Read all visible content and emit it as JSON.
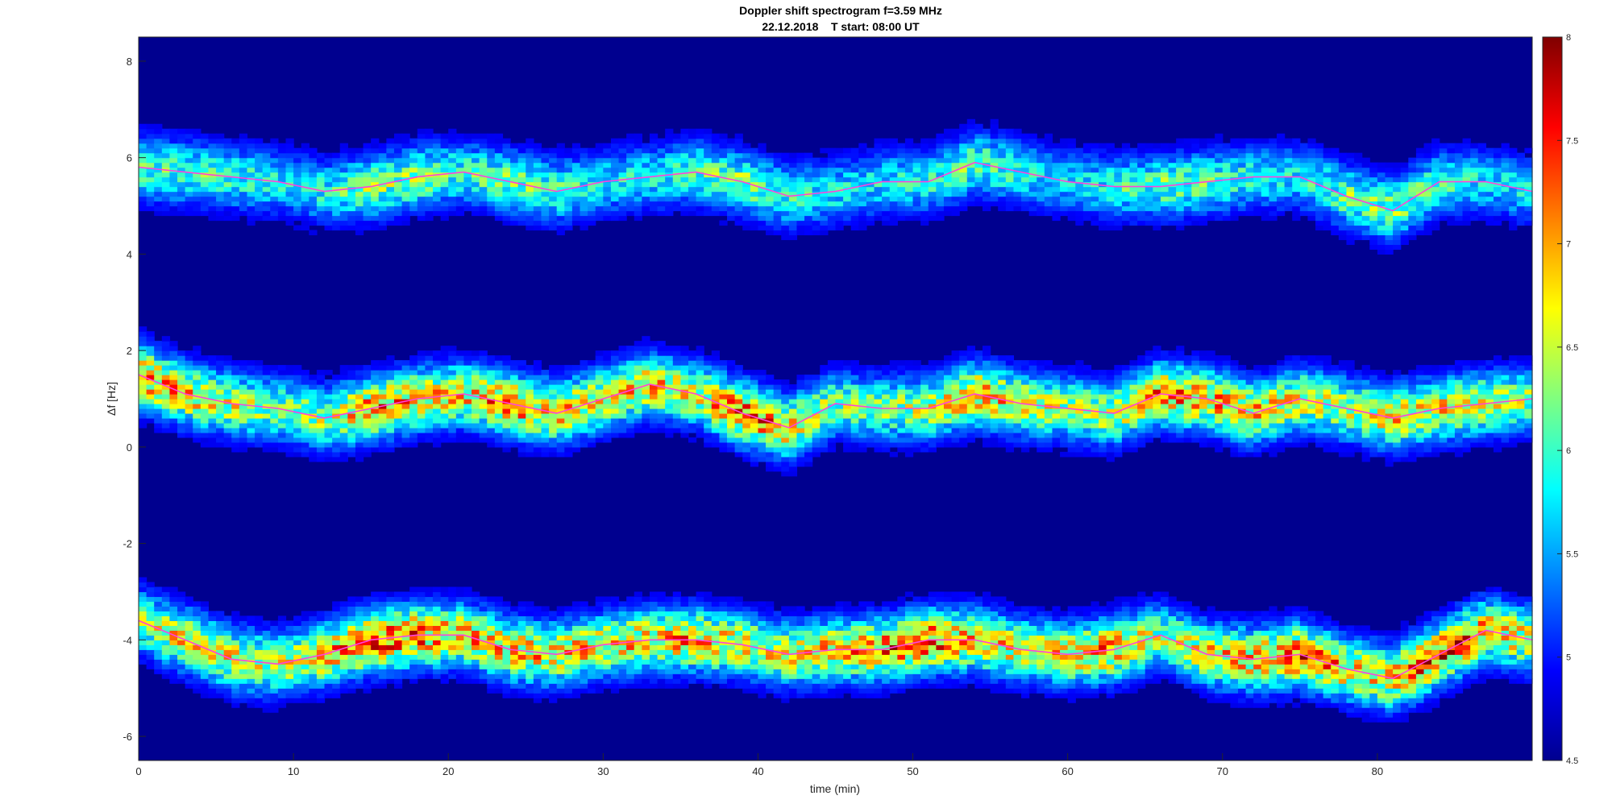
{
  "chart_data": {
    "type": "heatmap",
    "title": "Doppler shift spectrogram f=3.59 MHz",
    "subtitle": "22.12.2018    T start: 08:00 UT",
    "xlabel": "time (min)",
    "ylabel": "Δf [Hz]",
    "xlim": [
      0,
      90
    ],
    "ylim": [
      -6.5,
      8.5
    ],
    "xticks": [
      0,
      10,
      20,
      30,
      40,
      50,
      60,
      70,
      80
    ],
    "yticks": [
      -6,
      -4,
      -2,
      0,
      2,
      4,
      6,
      8
    ],
    "colormap": "jet",
    "clim": [
      4.5,
      8
    ],
    "colorbar_ticks": [
      4.5,
      5,
      5.5,
      6,
      6.5,
      7,
      7.5,
      8
    ],
    "colorbar_tick_labels": [
      "4.5",
      "5",
      "5.5",
      "6",
      "6.5",
      "7",
      "7.5",
      "8"
    ],
    "background_level": 4.7,
    "bands": [
      {
        "time": [
          0,
          3,
          6,
          9,
          12,
          15,
          18,
          21,
          24,
          27,
          30,
          33,
          36,
          39,
          42,
          45,
          48,
          51,
          54,
          57,
          60,
          63,
          66,
          69,
          72,
          75,
          78,
          81,
          84,
          87,
          90
        ],
        "center_hz": [
          5.8,
          5.7,
          5.6,
          5.5,
          5.3,
          5.4,
          5.6,
          5.7,
          5.5,
          5.3,
          5.5,
          5.6,
          5.7,
          5.5,
          5.2,
          5.3,
          5.5,
          5.5,
          5.9,
          5.7,
          5.5,
          5.4,
          5.4,
          5.5,
          5.6,
          5.6,
          5.2,
          4.9,
          5.5,
          5.5,
          5.3
        ],
        "intensity": [
          6.3,
          6.2,
          6.1,
          5.9,
          6.0,
          6.4,
          6.4,
          6.1,
          6.3,
          6.2,
          5.9,
          6.0,
          6.2,
          6.4,
          6.1,
          5.9,
          5.9,
          6.0,
          6.3,
          6.0,
          5.8,
          6.0,
          6.3,
          6.2,
          6.0,
          5.9,
          6.3,
          6.4,
          6.1,
          5.9,
          5.9
        ]
      },
      {
        "time": [
          0,
          3,
          6,
          9,
          12,
          15,
          18,
          21,
          24,
          27,
          30,
          33,
          36,
          39,
          42,
          45,
          48,
          51,
          54,
          57,
          60,
          63,
          66,
          69,
          72,
          75,
          78,
          81,
          84,
          87,
          90
        ],
        "center_hz": [
          1.5,
          1.1,
          0.9,
          0.8,
          0.6,
          0.8,
          1.0,
          1.1,
          0.9,
          0.7,
          1.0,
          1.3,
          1.1,
          0.7,
          0.4,
          0.9,
          0.8,
          0.8,
          1.1,
          0.9,
          0.8,
          0.7,
          1.1,
          1.0,
          0.7,
          1.0,
          0.8,
          0.6,
          0.8,
          0.9,
          1.0
        ],
        "intensity": [
          7.3,
          7.0,
          6.7,
          6.4,
          6.5,
          7.3,
          7.0,
          6.9,
          7.3,
          7.0,
          6.8,
          7.0,
          6.7,
          7.5,
          7.0,
          6.4,
          6.4,
          6.6,
          7.2,
          6.8,
          6.5,
          6.7,
          7.3,
          7.1,
          7.0,
          6.8,
          6.6,
          6.9,
          6.9,
          6.8,
          6.5
        ]
      },
      {
        "time": [
          0,
          3,
          6,
          9,
          12,
          15,
          18,
          21,
          24,
          27,
          30,
          33,
          36,
          39,
          42,
          45,
          48,
          51,
          54,
          57,
          60,
          63,
          66,
          69,
          72,
          75,
          78,
          81,
          84,
          87,
          90
        ],
        "center_hz": [
          -3.6,
          -4.0,
          -4.4,
          -4.5,
          -4.3,
          -4.0,
          -3.9,
          -3.9,
          -4.2,
          -4.3,
          -4.1,
          -4.0,
          -4.0,
          -4.1,
          -4.3,
          -4.2,
          -4.2,
          -4.0,
          -4.0,
          -4.2,
          -4.3,
          -4.2,
          -3.9,
          -4.3,
          -4.4,
          -4.3,
          -4.6,
          -4.8,
          -4.3,
          -3.8,
          -4.0
        ],
        "intensity": [
          6.4,
          6.9,
          6.8,
          6.6,
          7.0,
          7.5,
          7.4,
          7.0,
          7.1,
          7.0,
          6.9,
          7.0,
          7.2,
          6.8,
          6.9,
          7.0,
          7.3,
          7.5,
          7.0,
          6.8,
          6.9,
          7.2,
          6.5,
          6.9,
          7.1,
          7.5,
          7.0,
          7.0,
          7.6,
          7.1,
          6.8
        ]
      }
    ]
  }
}
